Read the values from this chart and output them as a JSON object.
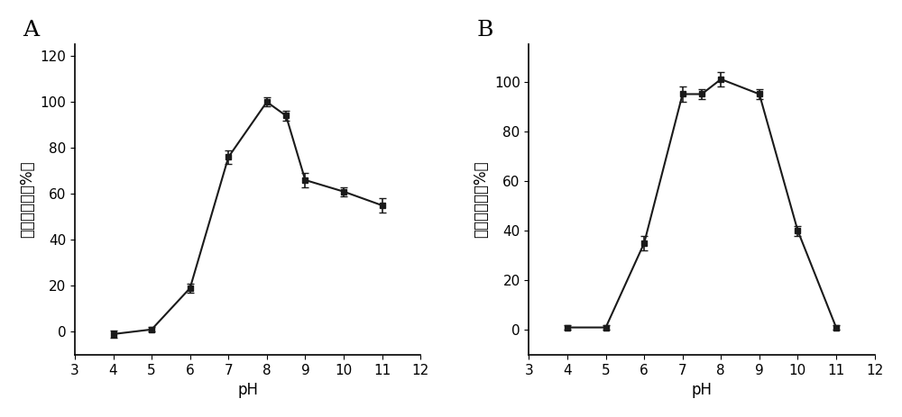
{
  "panel_A": {
    "label": "A",
    "x": [
      4,
      5,
      6,
      7,
      8,
      8.5,
      9,
      10,
      11
    ],
    "y": [
      -1,
      1,
      19,
      76,
      100,
      94,
      66,
      61,
      55
    ],
    "yerr": [
      1.5,
      1.0,
      2.0,
      3.0,
      2.0,
      2.0,
      3.0,
      2.0,
      3.0
    ],
    "xlabel": "pH",
    "ylabel": "相對酔活力（%）",
    "xlim": [
      3,
      12
    ],
    "ylim": [
      -10,
      125
    ],
    "xticks": [
      3,
      4,
      5,
      6,
      7,
      8,
      9,
      10,
      11,
      12
    ],
    "yticks": [
      0,
      20,
      40,
      60,
      80,
      100,
      120
    ]
  },
  "panel_B": {
    "label": "B",
    "x": [
      4,
      5,
      6,
      7,
      7.5,
      8,
      9,
      10,
      11
    ],
    "y": [
      1,
      1,
      35,
      95,
      95,
      101,
      95,
      40,
      1
    ],
    "yerr": [
      1.0,
      1.0,
      3.0,
      3.0,
      2.0,
      3.0,
      2.0,
      2.0,
      1.0
    ],
    "xlabel": "pH",
    "ylabel": "相對酔活力（%）",
    "xlim": [
      3,
      12
    ],
    "ylim": [
      -10,
      115
    ],
    "xticks": [
      3,
      4,
      5,
      6,
      7,
      8,
      9,
      10,
      11,
      12
    ],
    "yticks": [
      0,
      20,
      40,
      60,
      80,
      100
    ]
  },
  "line_color": "#1a1a1a",
  "marker": "s",
  "markersize": 5,
  "linewidth": 1.5,
  "capsize": 3,
  "elinewidth": 1.2,
  "tick_fontsize": 11,
  "label_fontsize": 12,
  "panel_label_fontsize": 18,
  "background_color": "#ffffff"
}
